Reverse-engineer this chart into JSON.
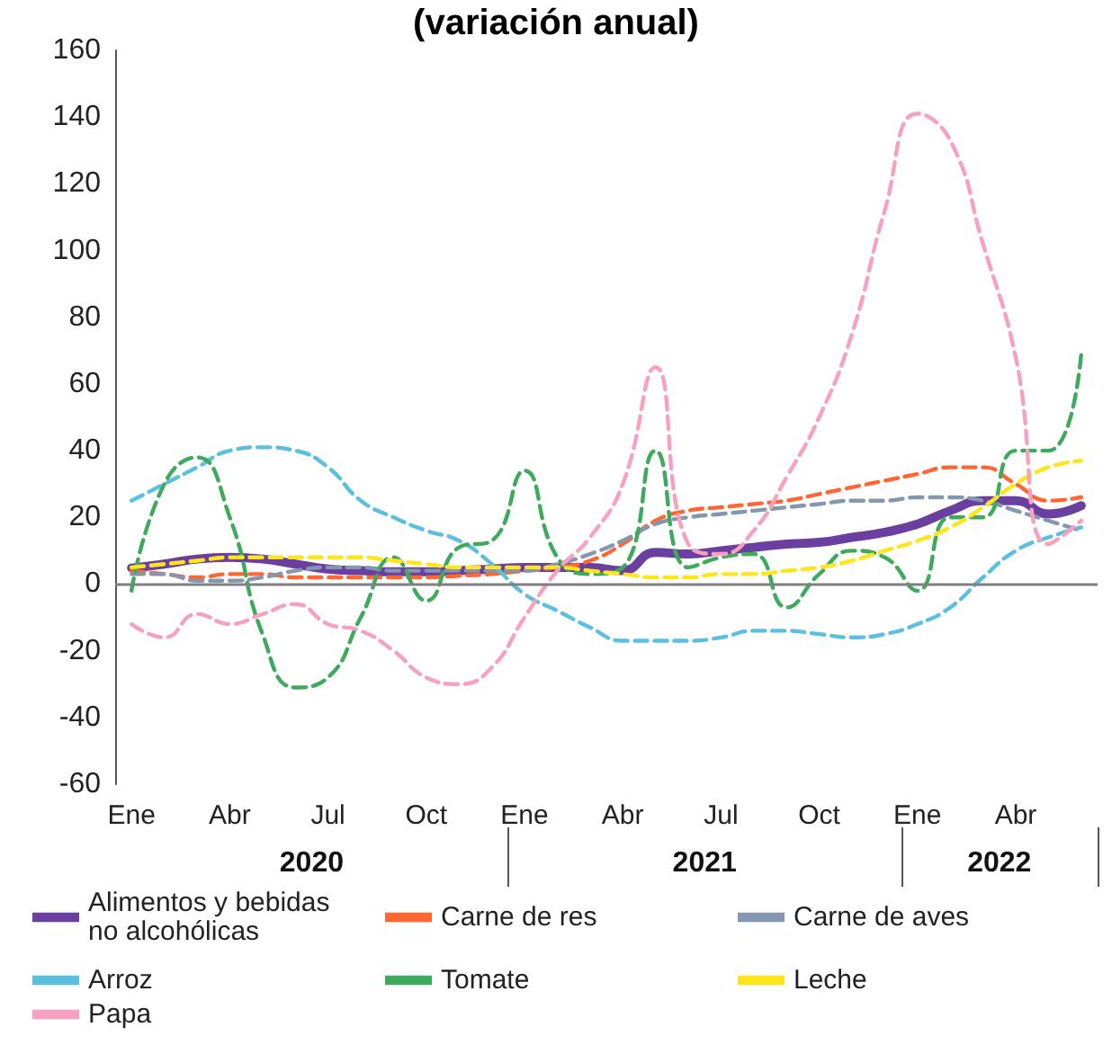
{
  "chart_data": {
    "type": "line",
    "title": "(variación anual)",
    "x": [
      "2020-01",
      "2020-02",
      "2020-03",
      "2020-04",
      "2020-05",
      "2020-06",
      "2020-07",
      "2020-08",
      "2020-09",
      "2020-10",
      "2020-11",
      "2020-12",
      "2021-01",
      "2021-02",
      "2021-03",
      "2021-04",
      "2021-05",
      "2021-06",
      "2021-07",
      "2021-08",
      "2021-09",
      "2021-10",
      "2021-11",
      "2021-12",
      "2022-01",
      "2022-02",
      "2022-03",
      "2022-04",
      "2022-05",
      "2022-06"
    ],
    "xticks": [
      {
        "value": "2020-01",
        "label": "Ene"
      },
      {
        "value": "2020-04",
        "label": "Abr"
      },
      {
        "value": "2020-07",
        "label": "Jul"
      },
      {
        "value": "2020-10",
        "label": "Oct"
      },
      {
        "value": "2021-01",
        "label": "Ene"
      },
      {
        "value": "2021-04",
        "label": "Abr"
      },
      {
        "value": "2021-07",
        "label": "Jul"
      },
      {
        "value": "2021-10",
        "label": "Oct"
      },
      {
        "value": "2022-01",
        "label": "Ene"
      },
      {
        "value": "2022-04",
        "label": "Abr"
      }
    ],
    "xlim": [
      "2019-12-16",
      "2022-06-16"
    ],
    "ref_lines": [
      {
        "axis": "y",
        "value": 0,
        "color": "#808080"
      }
    ],
    "annotations": [
      "2020",
      "2021",
      "2022"
    ],
    "ylim": [
      -60,
      160
    ],
    "yticks": [
      -60,
      -40,
      -20,
      0,
      20,
      40,
      60,
      80,
      100,
      120,
      140,
      160
    ],
    "legend": "bottom",
    "marker": "none",
    "series": [
      {
        "name": "Alimentos y bebidas no alcohólicas",
        "color": "#6a3fa0",
        "line_style": "solid",
        "values": [
          4.8,
          6,
          7.5,
          8,
          7.5,
          6,
          4.5,
          4,
          3.7,
          3.7,
          4,
          4.5,
          5,
          5,
          5,
          4,
          9.5,
          9,
          10,
          11,
          12,
          12.5,
          14,
          15.5,
          18,
          22,
          25,
          25,
          21,
          23.5
        ]
      },
      {
        "name": "Carne de res",
        "color": "#ff6633",
        "line_style": "dashed",
        "values": [
          4,
          3,
          2,
          3,
          3,
          2,
          2,
          2,
          2,
          2,
          2.5,
          3,
          4,
          5,
          7,
          12,
          19,
          22,
          23,
          24,
          25,
          27,
          29,
          31,
          33,
          35,
          35,
          30,
          25,
          26
        ]
      },
      {
        "name": "Carne de aves",
        "color": "#8497b0",
        "line_style": "dashed",
        "values": [
          3,
          3,
          1,
          1,
          2,
          4,
          5,
          5,
          4,
          4,
          4,
          4,
          4,
          6,
          9,
          13,
          18,
          20,
          21,
          22,
          23,
          24,
          25,
          25,
          26,
          26,
          25,
          22,
          19,
          16
        ]
      },
      {
        "name": "Arroz",
        "color": "#5bc0e0",
        "line_style": "dashed",
        "values": [
          25,
          30,
          35,
          40,
          41,
          40,
          35,
          25,
          20,
          16,
          13,
          6,
          -3,
          -8,
          -13,
          -17,
          -17,
          -17,
          -16,
          -14,
          -14,
          -15,
          -16,
          -15,
          -12,
          -7,
          2,
          10,
          14,
          17
        ]
      },
      {
        "name": "Tomate",
        "color": "#3daa5c",
        "line_style": "dashed",
        "values": [
          -2,
          30,
          38,
          20,
          -15,
          -31,
          -28,
          -10,
          8,
          -5,
          11,
          13,
          34,
          8,
          3,
          5,
          40,
          5,
          8,
          9,
          -7,
          3,
          10,
          8,
          -2,
          20,
          20,
          40,
          40,
          69
        ]
      },
      {
        "name": "Leche",
        "color": "#ffe51a",
        "line_style": "dashed",
        "values": [
          5,
          6,
          7,
          8,
          8,
          8,
          8,
          8,
          7,
          6,
          5,
          5,
          5,
          5,
          4,
          3,
          2,
          2,
          3,
          3,
          4,
          5,
          7,
          10,
          13,
          17,
          23,
          30,
          35,
          37
        ]
      },
      {
        "name": "Papa",
        "color": "#f7a0c0",
        "line_style": "dashed",
        "values": [
          -12,
          -16,
          -9,
          -12,
          -9,
          -6,
          -12,
          -14,
          -20,
          -28,
          -30,
          -25,
          -10,
          4,
          14,
          30,
          65,
          12,
          9,
          16,
          32,
          50,
          75,
          112,
          141,
          133,
          102,
          68,
          12,
          19
        ]
      }
    ]
  }
}
